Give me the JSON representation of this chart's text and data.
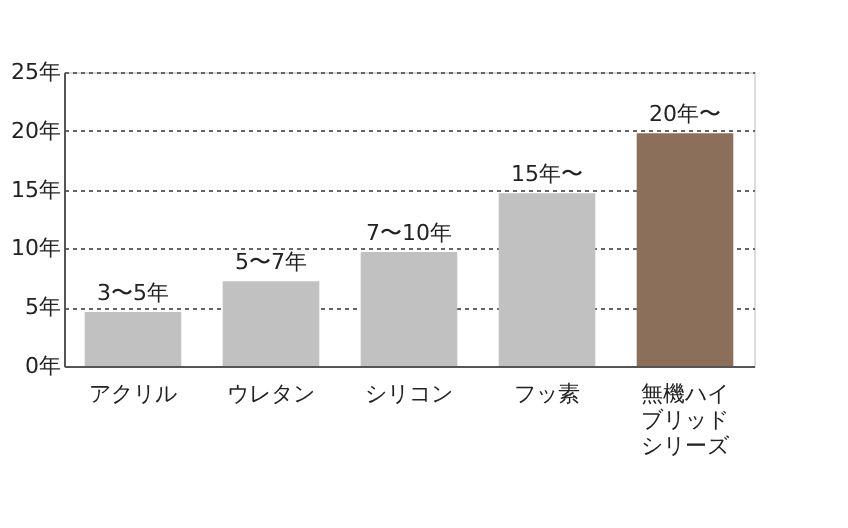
{
  "chart_data": {
    "type": "bar",
    "categories": [
      "アクリル",
      "ウレタン",
      "シリコン",
      "フッ素",
      "無機ハイブリッドシリーズ"
    ],
    "values": [
      4.6,
      7.2,
      9.7,
      14.7,
      19.8
    ],
    "colors": [
      "#c0c1c0",
      "#c0c1c0",
      "#c0c1c0",
      "#c0c1c0",
      "#8b6f5a"
    ],
    "value_labels": [
      "3〜5年",
      "5〜7年",
      "7〜10年",
      "15年〜",
      "20年〜"
    ],
    "ylim": [
      0,
      25
    ],
    "yticks": [
      {
        "value": 0,
        "label": "0年"
      },
      {
        "value": 5,
        "label": "5年"
      },
      {
        "value": 10,
        "label": "10年"
      },
      {
        "value": 15,
        "label": "15年"
      },
      {
        "value": 20,
        "label": "20年"
      },
      {
        "value": 25,
        "label": "25年"
      }
    ],
    "grid": "y",
    "legend": false
  }
}
